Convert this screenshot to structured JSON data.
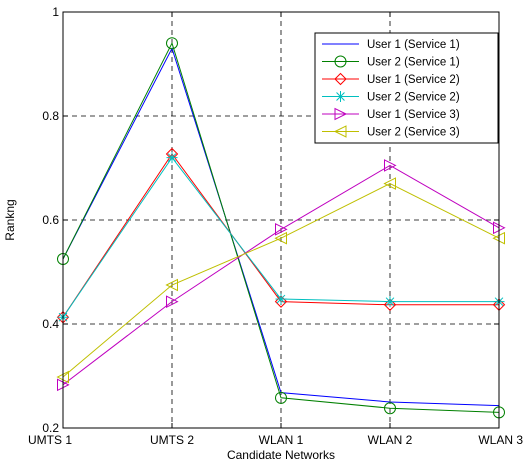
{
  "chart_data": {
    "type": "line",
    "title": "",
    "xlabel": "Candidate Networks",
    "ylabel": "Rankng",
    "categories": [
      "UMTS 1",
      "UMTS 2",
      "WLAN 1",
      "WLAN 2",
      "WLAN 3"
    ],
    "ylim": [
      0.2,
      1.0
    ],
    "yticks": [
      "0.2",
      "0.4",
      "0.6",
      "0.8",
      "1"
    ],
    "grid": true,
    "legend_position": "top-right",
    "series": [
      {
        "name": "User 1 (Service 1)",
        "color": "#0000ff",
        "marker": "none",
        "values": [
          0.525,
          0.93,
          0.268,
          0.25,
          0.243
        ]
      },
      {
        "name": "User 2 (Service 1)",
        "color": "#008000",
        "marker": "circle",
        "values": [
          0.525,
          0.94,
          0.258,
          0.238,
          0.23
        ]
      },
      {
        "name": "User 1 (Service 2)",
        "color": "#ff0000",
        "marker": "diamond",
        "values": [
          0.413,
          0.727,
          0.443,
          0.437,
          0.437
        ]
      },
      {
        "name": "User 2 (Service 2)",
        "color": "#00bfbf",
        "marker": "asterisk",
        "values": [
          0.413,
          0.72,
          0.448,
          0.443,
          0.443
        ]
      },
      {
        "name": "User 1 (Service 3)",
        "color": "#bf00bf",
        "marker": "triangle-right",
        "values": [
          0.283,
          0.443,
          0.582,
          0.705,
          0.585
        ]
      },
      {
        "name": "User 2 (Service 3)",
        "color": "#bfbf00",
        "marker": "triangle-left",
        "values": [
          0.298,
          0.475,
          0.565,
          0.67,
          0.565
        ]
      }
    ]
  }
}
